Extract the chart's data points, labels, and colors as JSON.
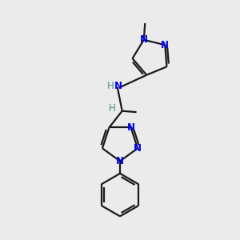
{
  "bg_color": "#ebebeb",
  "bond_color": "#1a1a1a",
  "n_color": "#0000ee",
  "h_color": "#4a9090",
  "line_width": 1.6,
  "figsize": [
    3.0,
    3.0
  ],
  "dpi": 100,
  "xlim": [
    0,
    10
  ],
  "ylim": [
    0,
    10
  ]
}
